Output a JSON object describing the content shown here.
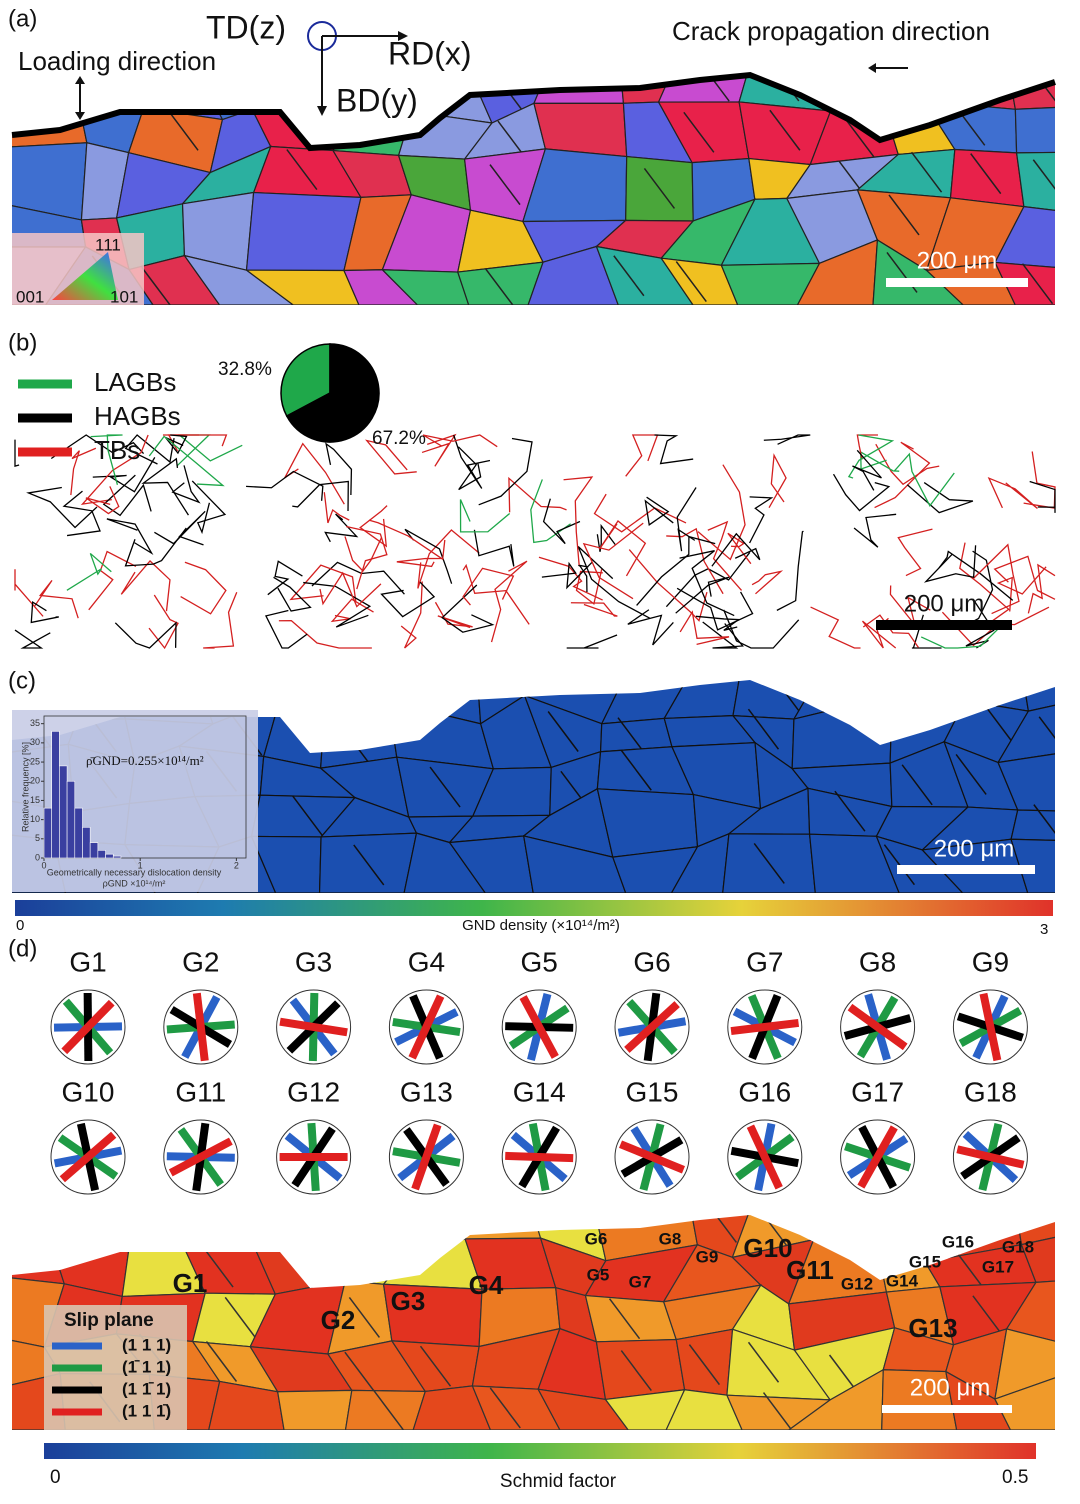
{
  "panel_a": {
    "label": "(a)",
    "axes": {
      "td": "TD(z)",
      "rd": "RD(x)",
      "bd": "BD(y)"
    },
    "loading_direction": "Loading direction",
    "crack_direction": "Crack propagation direction",
    "scale_bar": "200 μm",
    "ipf_key": {
      "top": "111",
      "left": "001",
      "right": "101"
    }
  },
  "panel_b": {
    "label": "(b)",
    "legend": [
      {
        "name": "LAGBs",
        "color": "#1fa84a"
      },
      {
        "name": "HAGBs",
        "color": "#000000"
      },
      {
        "name": "TBs",
        "color": "#e02020"
      }
    ],
    "pie": {
      "type": "pie",
      "values": [
        32.8,
        67.2
      ],
      "value_labels": [
        "32.8%",
        "67.2%"
      ],
      "colors": [
        "#1fa84a",
        "#000000"
      ]
    },
    "scale_bar": "200 μm"
  },
  "panel_c": {
    "label": "(c)",
    "inset": {
      "type": "histogram",
      "y_label": "Relative frequency [%]",
      "x_label": "Geometrically necessary dislocation density",
      "x_unit": "ρGND ×10¹⁴/m²",
      "annotation": "ρ̄GND=0.255×10¹⁴/m²",
      "bins": [
        0,
        0.08,
        0.16,
        0.24,
        0.32,
        0.4,
        0.48,
        0.56,
        0.64,
        0.72,
        0.8
      ],
      "values": [
        13,
        33,
        24,
        20,
        13,
        8,
        4,
        2,
        1,
        0.5
      ],
      "xlim": [
        0,
        2.1
      ],
      "xticks": [
        0,
        1,
        2
      ],
      "ylim": [
        0,
        37
      ],
      "yticks": [
        0,
        5,
        10,
        15,
        20,
        25,
        30,
        35
      ]
    },
    "colorbar": {
      "range": [
        0,
        3
      ],
      "label": "GND density (×10¹⁴/m²)"
    },
    "scale_bar": "200 μm"
  },
  "panel_d": {
    "label": "(d)",
    "grains": [
      "G1",
      "G2",
      "G3",
      "G4",
      "G5",
      "G6",
      "G7",
      "G8",
      "G9",
      "G10",
      "G11",
      "G12",
      "G13",
      "G14",
      "G15",
      "G16",
      "G17",
      "G18"
    ],
    "slip_plane": {
      "title": "Slip plane",
      "planes": [
        {
          "name": "(1 1 1)",
          "color": "#2a62c8"
        },
        {
          "name": "(1̄ 1 1)",
          "color": "#1f9a44"
        },
        {
          "name": "(1 1̄ 1)",
          "color": "#000000"
        },
        {
          "name": "(1 1 1̄)",
          "color": "#e02020"
        }
      ]
    },
    "colorbar": {
      "range": [
        0,
        0.5
      ],
      "label": "Schmid factor"
    },
    "scale_bar": "200 μm"
  }
}
